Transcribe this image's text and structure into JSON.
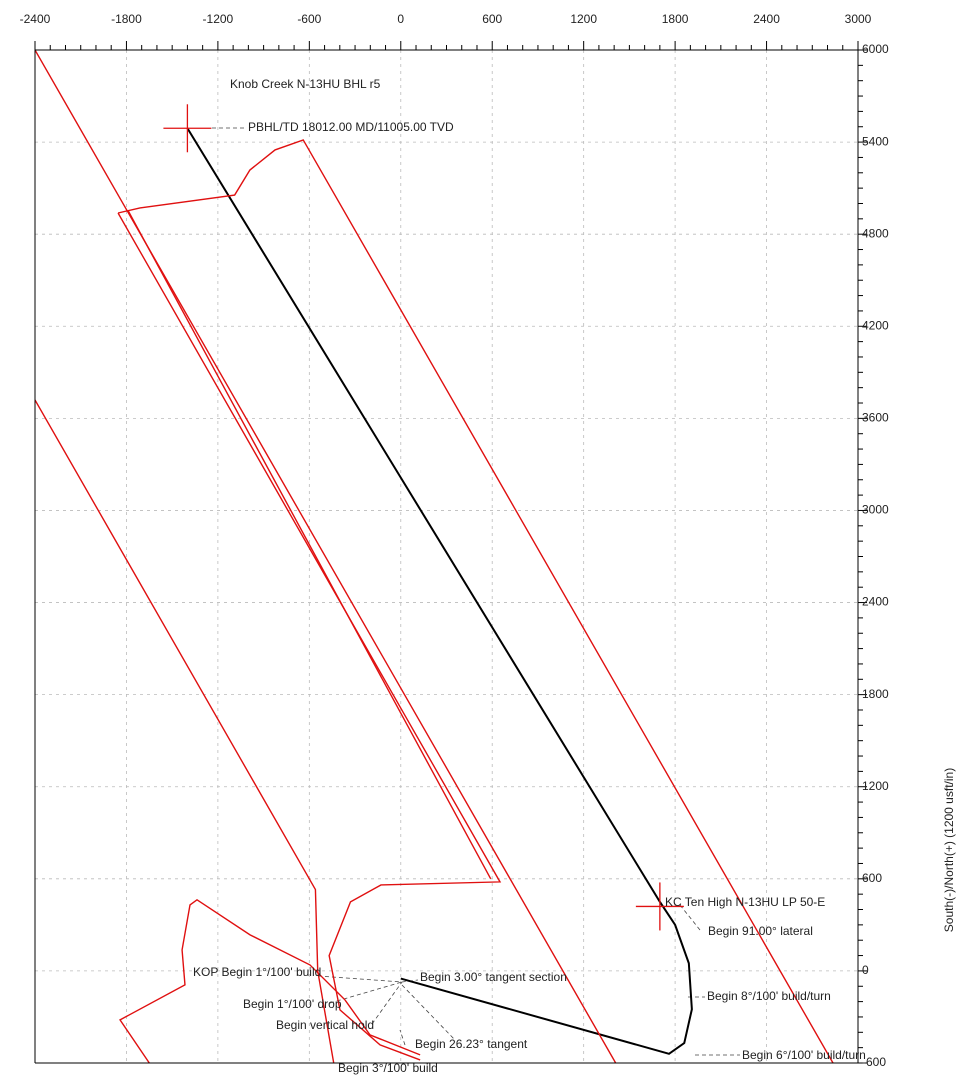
{
  "chart_data": {
    "type": "line",
    "y_label": "South(-)/North(+) (1200 usft/in)",
    "xlim": [
      -2400,
      3000
    ],
    "ylim": [
      -600,
      6000
    ],
    "xticks": [
      -2400,
      -1800,
      -1200,
      -600,
      0,
      600,
      1200,
      1800,
      2400,
      3000
    ],
    "yticks": [
      -600,
      0,
      600,
      1200,
      1800,
      2400,
      3000,
      3600,
      4200,
      4800,
      5400,
      6000
    ],
    "grid": true,
    "series": [
      {
        "color": "#000000",
        "x": [
          0,
          1760,
          1860,
          1910,
          1890,
          1800,
          1700,
          -1400
        ],
        "values": [
          -50,
          -540,
          -470,
          -250,
          50,
          300,
          450,
          5490
        ]
      },
      {
        "color": "#e01010",
        "x": [
          -2400,
          1410
        ],
        "values": [
          6000,
          -600
        ]
      },
      {
        "color": "#e01010",
        "x": [
          -2400,
          -560,
          -545,
          -440
        ],
        "values": [
          3720,
          530,
          0,
          -600
        ]
      },
      {
        "color": "#e01010",
        "x": [
          -1855,
          -1711,
          -1090,
          -990,
          -825,
          -640,
          2836
        ],
        "values": [
          4938,
          4971,
          5055,
          5218,
          5349,
          5414,
          -600
        ]
      },
      {
        "color": "#e01010",
        "x": [
          -1855,
          651,
          -130,
          -330,
          -470,
          -399,
          -136,
          127
        ],
        "values": [
          4938,
          580,
          560,
          450,
          100,
          -254,
          -482,
          -580
        ]
      },
      {
        "color": "#e01010",
        "x": [
          -1790,
          590
        ],
        "values": [
          4955,
          600
        ]
      },
      {
        "color": "#e01010",
        "x": [
          -1650,
          -1842,
          -1416,
          -1435,
          -1383,
          -1337,
          -989,
          -596,
          -366,
          -202,
          127
        ],
        "values": [
          -600,
          -319,
          -91,
          137,
          430,
          463,
          235,
          39,
          -189,
          -417,
          -547
        ]
      }
    ],
    "markers": [
      {
        "x": -1400,
        "y": 5490,
        "color": "#e01010"
      },
      {
        "x": 1700,
        "y": 420,
        "color": "#e01010"
      }
    ],
    "annotations": [
      "Knob Creek N-13HU BHL r5",
      "PBHL/TD 18012.00 MD/11005.00 TVD",
      "KC Ten High N-13HU LP 50-E",
      "Begin 91.00° lateral",
      "KOP Begin 1°/100' build",
      "Begin 3.00° tangent section",
      "Begin 1°/100' drop",
      "Begin 8°/100' build/turn",
      "Begin vertical hold",
      "Begin 26.23° tangent",
      "Begin 6°/100' build/turn",
      "Begin 3°/100' build"
    ]
  }
}
